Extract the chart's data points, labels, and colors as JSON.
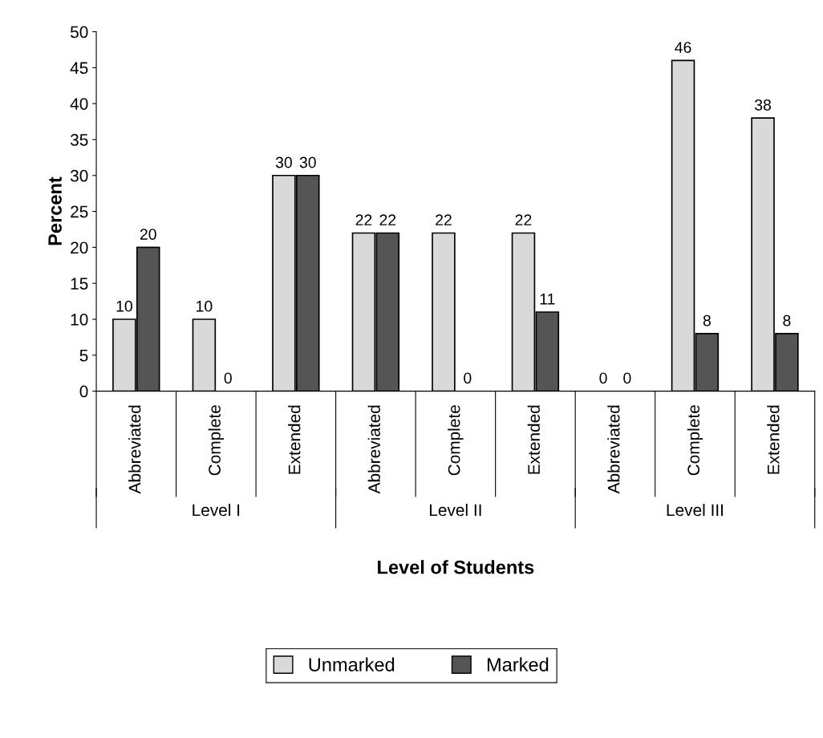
{
  "chart_data": {
    "type": "bar",
    "xlabel": "Level of Students",
    "ylabel": "Percent",
    "categories": [
      "Abbreviated",
      "Complete",
      "Extended",
      "Abbreviated",
      "Complete",
      "Extended",
      "Abbreviated",
      "Complete",
      "Extended"
    ],
    "series": [
      {
        "name": "Unmarked",
        "color": "#d9d9d9",
        "values": [
          10,
          10,
          30,
          22,
          22,
          22,
          0,
          46,
          38
        ]
      },
      {
        "name": "Marked",
        "color": "#555555",
        "values": [
          20,
          0,
          30,
          22,
          0,
          11,
          0,
          8,
          8
        ]
      }
    ],
    "annotations": [
      "Level I",
      "Level II",
      "Level III"
    ],
    "ylim": [
      0,
      50
    ],
    "yticks": [
      0,
      5,
      10,
      15,
      20,
      25,
      30,
      35,
      40,
      45,
      50
    ],
    "data_labels": true,
    "grid": false,
    "legend": "bottom"
  }
}
